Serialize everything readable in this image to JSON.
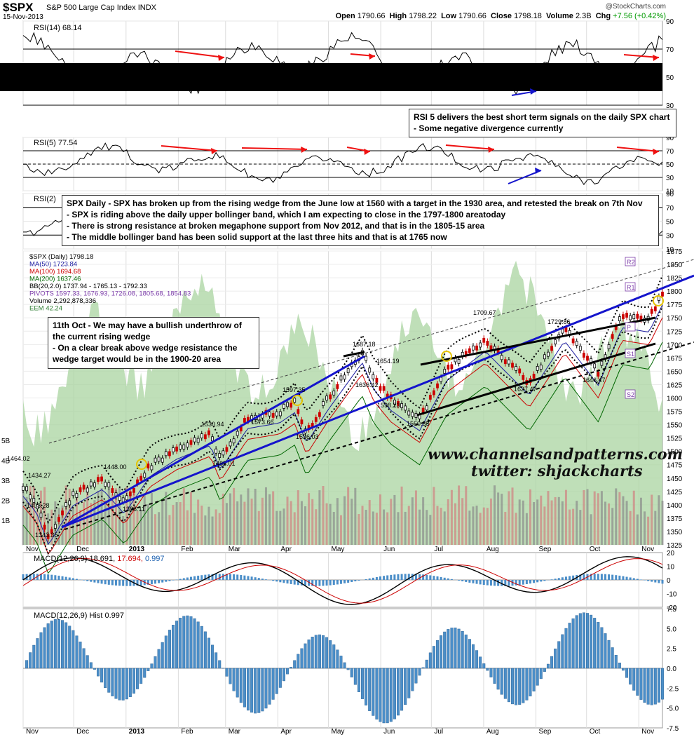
{
  "header": {
    "ticker": "$SPX",
    "name": "S&P 500 Large Cap Index",
    "exchange": "INDX",
    "date": "15-Nov-2013",
    "provider": "@StockCharts.com",
    "open_label": "Open",
    "open": "1790.66",
    "high_label": "High",
    "high": "1798.22",
    "low_label": "Low",
    "low": "1790.66",
    "close_label": "Close",
    "close": "1798.18",
    "volume_label": "Volume",
    "volume": "2.3B",
    "chg_label": "Chg",
    "chg": "+7.56 (+0.42%)"
  },
  "panels": {
    "rsi14": {
      "legend": "RSI(14) 68.14",
      "ticks": [
        "90",
        "70",
        "50",
        "30"
      ]
    },
    "rsi5": {
      "legend": "RSI(5) 77.54",
      "ticks": [
        "90",
        "70",
        "50",
        "30",
        "10"
      ]
    },
    "rsi2": {
      "legend": "RSI(2)",
      "ticks": [
        "90",
        "70",
        "50",
        "30",
        "10"
      ]
    },
    "macd": {
      "legend_main": "MACD(12,26,9) 18.691,",
      "legend_signal": "17.694,",
      "legend_hist": "0.997",
      "ticks": [
        "20",
        "10",
        "0",
        "-10",
        "-20"
      ]
    },
    "hist": {
      "legend": "MACD(12,26,9) Hist 0.997",
      "ticks": [
        "7.5",
        "5.0",
        "2.5",
        "0.0",
        "-2.5",
        "-5.0",
        "-7.5"
      ]
    }
  },
  "legend_main": [
    {
      "text": "$SPX (Daily) 1798.18",
      "color": "#000000"
    },
    {
      "text": "MA(50) 1723.84",
      "color": "#1a1aa0"
    },
    {
      "text": "MA(100) 1694.68",
      "color": "#cc0000"
    },
    {
      "text": "MA(200) 1637.46",
      "color": "#006600"
    },
    {
      "text": "BB(20,2.0) 1737.94 - 1765.13 - 1792.33",
      "color": "#000000"
    },
    {
      "text": "PIVOTS 1597.33, 1676.93, 1726.08, 1805.68, 1854.83",
      "color": "#7a3aa8"
    },
    {
      "text": "Volume 2,292,878,336",
      "color": "#000000"
    },
    {
      "text": "EEM 42.24",
      "color": "#2e7d32"
    }
  ],
  "notes": {
    "rsi5_note": [
      "RSI 5 delivers the best short term signals on the daily SPX chart",
      "- Some negative divergence currently"
    ],
    "spx_note": [
      "SPX Daily - SPX has broken up from the rising wedge from the June low at 1560 with a target in the 1930 area, and retested the break on 7th Nov",
      "- SPX is riding above the daily upper bollinger band, which I am expecting to close in the 1797-1800 areatoday",
      "- There is strong resistance at broken megaphone support from Nov 2012, and that is in the 1805-15 area",
      "- The middle bollinger band has been solid support at the last three hits and that is at 1765 now"
    ],
    "oct_note": [
      "11th Oct - We may have a bullish underthrow of",
      "the current rising wedge",
      "- On a clear break above wedge resistance the",
      "wedge target would be in the 1900-20 area"
    ]
  },
  "watermark": {
    "line1": "www.channelsandpatterns.com",
    "line2": "twitter: shjackcharts"
  },
  "pivot_labels": [
    "R2",
    "R1",
    "P",
    "S1",
    "S2"
  ],
  "volume_ticks": [
    "5B",
    "4B",
    "3B",
    "2B",
    "1B"
  ],
  "colors": {
    "up": "#000000",
    "down": "#cc0000",
    "rsi_band": "#000000",
    "macd": "#000000",
    "signal": "#cc0000",
    "hist": "#4b8ec8",
    "eem_fill": "#a9d4a0",
    "trendline": "#1414cc",
    "annot_arrow": "#ee1111"
  },
  "chart_data": {
    "type": "line",
    "title": "$SPX S&P 500 Large Cap Index INDX",
    "date_range": [
      "2012-11-01",
      "2013-11-15"
    ],
    "x_month_labels": [
      "Nov",
      "Dec",
      "2013",
      "Feb",
      "Mar",
      "Apr",
      "May",
      "Jun",
      "Jul",
      "Aug",
      "Sep",
      "Oct",
      "Nov"
    ],
    "price_ylim": [
      1325,
      1875
    ],
    "price_ticks": [
      1875,
      1850,
      1825,
      1800,
      1775,
      1750,
      1725,
      1700,
      1675,
      1650,
      1625,
      1600,
      1575,
      1550,
      1525,
      1500,
      1475,
      1450,
      1425,
      1400,
      1375,
      1350,
      1325
    ],
    "series": [
      {
        "name": "$SPX (Daily)",
        "x": [
          "2012-11-01",
          "2012-11-09",
          "2012-11-16",
          "2012-11-30",
          "2012-12-18",
          "2012-12-31",
          "2013-01-15",
          "2013-01-31",
          "2013-02-20",
          "2013-02-26",
          "2013-03-14",
          "2013-04-02",
          "2013-04-11",
          "2013-04-18",
          "2013-05-01",
          "2013-05-21",
          "2013-05-28",
          "2013-06-07",
          "2013-06-24",
          "2013-07-10",
          "2013-08-02",
          "2013-08-28",
          "2013-09-18",
          "2013-10-08",
          "2013-10-22",
          "2013-11-07",
          "2013-11-15"
        ],
        "values": [
          1434.27,
          1403.28,
          1343.35,
          1416,
          1448,
          1402,
          1472,
          1505,
          1530.94,
          1485.01,
          1563,
          1573.66,
          1593.37,
          1536.03,
          1600,
          1687.18,
          1636.42,
          1598.23,
          1560.33,
          1654.19,
          1709.67,
          1627.47,
          1729.86,
          1646.47,
          1755,
          1747,
          1798.18
        ]
      },
      {
        "name": "MA(50)",
        "values_last": 1723.84
      },
      {
        "name": "MA(100)",
        "values_last": 1694.68
      },
      {
        "name": "MA(200)",
        "values_last": 1637.46
      }
    ],
    "annotations": [
      "1464.02",
      "1434.27",
      "1403.28",
      "1343.35",
      "1448.00",
      "1398.11",
      "1530.94",
      "1485.01",
      "1573.66",
      "1597.35",
      "1536.03",
      "1687.18",
      "1636.42",
      "1598.23",
      "1654.19",
      "1560.33",
      "1709.67",
      "1627.47",
      "1729.86",
      "1646.47"
    ],
    "rsi14": {
      "ylim": [
        30,
        90
      ],
      "last": 68.14
    },
    "rsi5": {
      "ylim": [
        10,
        90
      ],
      "last": 77.54
    },
    "macd": {
      "ylim": [
        -20,
        20
      ],
      "macd_last": 18.691,
      "signal_last": 17.694,
      "hist_last": 0.997
    },
    "macd_hist": {
      "ylim": [
        -7.5,
        7.5
      ],
      "last": 0.997
    }
  }
}
